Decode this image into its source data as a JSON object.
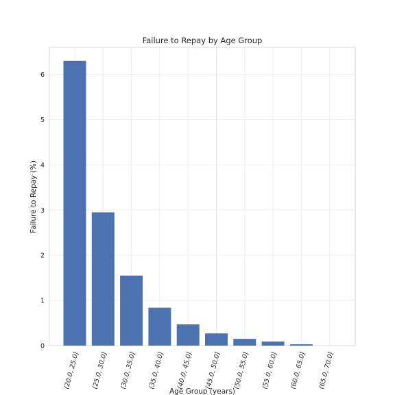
{
  "chart_data": {
    "type": "bar",
    "title": "Failure to Repay by Age Group",
    "xlabel": "Age Group (years)",
    "ylabel": "Failure to Repay (%)",
    "categories": [
      "(20.0, 25.0]",
      "(25.0, 30.0]",
      "(30.0, 35.0]",
      "(35.0, 40.0]",
      "(40.0, 45.0]",
      "(45.0, 50.0]",
      "(50.0, 55.0]",
      "(55.0, 60.0]",
      "(60.0, 65.0]",
      "(65.0, 70.0]"
    ],
    "values": [
      6.3,
      2.95,
      1.55,
      0.84,
      0.47,
      0.27,
      0.15,
      0.09,
      0.03,
      0.0
    ],
    "ylim": [
      0,
      6.6
    ],
    "yticks": [
      0,
      1,
      2,
      3,
      4,
      5,
      6
    ],
    "grid": true,
    "bar_color": "#4c72b0"
  }
}
